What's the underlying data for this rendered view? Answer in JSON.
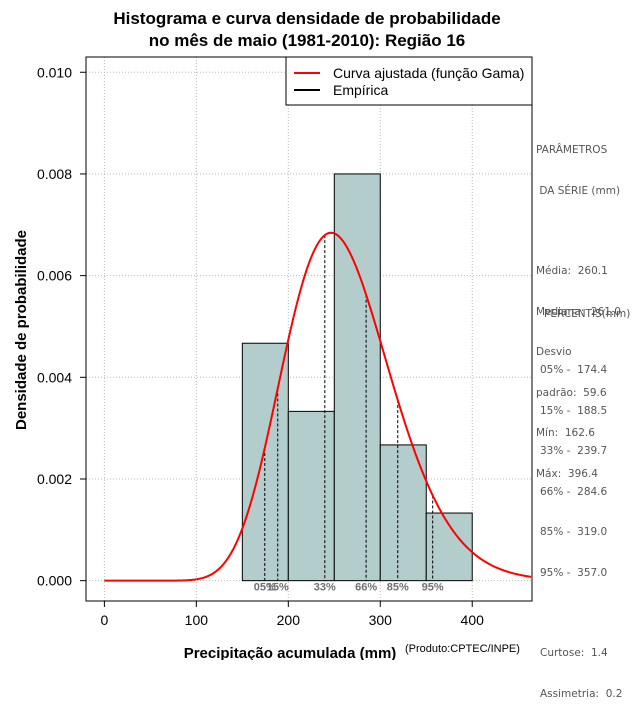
{
  "chart_data": {
    "type": "histogram",
    "title_lines": [
      "Histograma e curva densidade de probabilidade",
      "no mês de maio (1981-2010): Região 16"
    ],
    "xlabel": "Precipitação acumulada (mm)",
    "ylabel": "Densidade de probabilidade",
    "credit": "(Produto:CPTEC/INPE)",
    "xlim": [
      -20,
      465
    ],
    "ylim": [
      -0.0004,
      0.0103
    ],
    "xticks": [
      0,
      100,
      200,
      300,
      400
    ],
    "yticks": [
      0.0,
      0.002,
      0.004,
      0.006,
      0.008,
      0.01
    ],
    "ytick_labels": [
      "0.000",
      "0.002",
      "0.004",
      "0.006",
      "0.008",
      "0.010"
    ],
    "grid": true,
    "bins": [
      {
        "x0": 150,
        "x1": 200,
        "density": 0.00467
      },
      {
        "x0": 200,
        "x1": 250,
        "density": 0.00333
      },
      {
        "x0": 250,
        "x1": 300,
        "density": 0.008
      },
      {
        "x0": 300,
        "x1": 350,
        "density": 0.00267
      },
      {
        "x0": 350,
        "x1": 400,
        "density": 0.00133
      }
    ],
    "bar_color": "#b3cccc",
    "curve": {
      "name": "Curva ajustada (função Gama)",
      "color": "#ff0000",
      "shape": 19.04,
      "rate": 0.0732
    },
    "legend": [
      {
        "label": "Curva ajustada (função Gama)",
        "color": "#ff0000"
      },
      {
        "label": "Empírica",
        "color": "#000000"
      }
    ],
    "percentile_lines": [
      {
        "label": "05%",
        "value": 174.4
      },
      {
        "label": "15%",
        "value": 188.5
      },
      {
        "label": "33%",
        "value": 239.7
      },
      {
        "label": "66%",
        "value": 284.6
      },
      {
        "label": "85%",
        "value": 319.0
      },
      {
        "label": "95%",
        "value": 357.0
      }
    ]
  },
  "stats_panel": {
    "heading_line1": "PARÂMETROS",
    "heading_line2": " DA SÉRIE (mm)",
    "media": "Média:  260.1",
    "mediana": "Mediana:  261.0",
    "desvio": "Desvio",
    "desvio_valor": "padrão:  59.6",
    "min": "Mín:  162.6",
    "max": "Máx:  396.4"
  },
  "percentile_panel": {
    "heading": "PERCENTIS(mm)",
    "rows": [
      "05% -  174.4",
      "15% -  188.5",
      "33% -  239.7",
      "66% -  284.6",
      "85% -  319.0",
      "95% -  357.0"
    ],
    "curtose": "Curtose:  1.4",
    "assimetria": "Assimetria:  0.2"
  }
}
